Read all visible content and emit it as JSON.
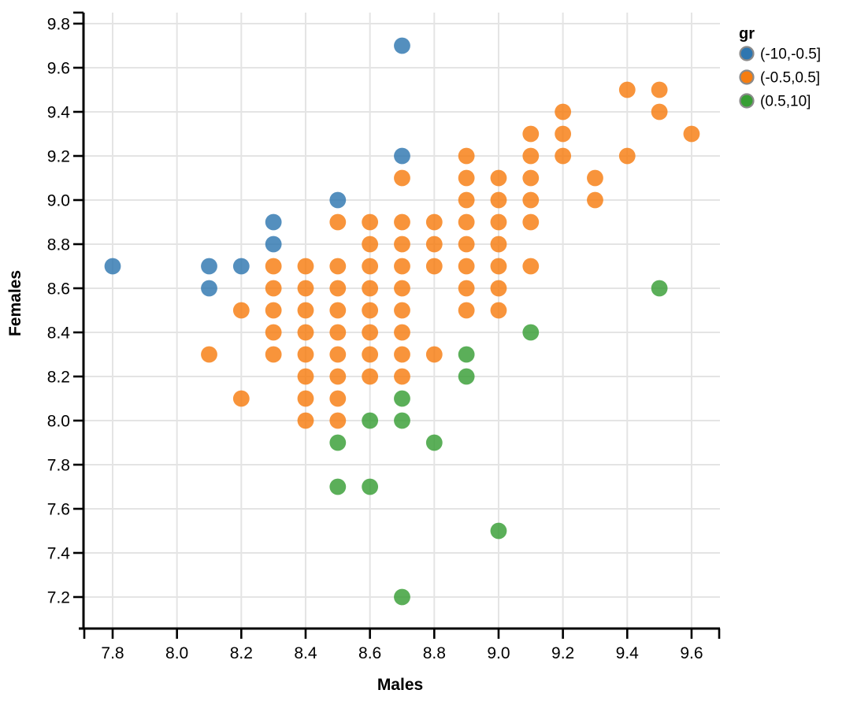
{
  "chart_data": {
    "type": "scatter",
    "title": "",
    "xlabel": "Males",
    "ylabel": "Females",
    "xlim": [
      7.71,
      9.68
    ],
    "ylim": [
      7.06,
      9.85
    ],
    "x_ticks": [
      7.8,
      8.0,
      8.2,
      8.4,
      8.6,
      8.8,
      9.0,
      9.2,
      9.4,
      9.6
    ],
    "y_ticks": [
      7.2,
      7.4,
      7.6,
      7.8,
      8.0,
      8.2,
      8.4,
      8.6,
      8.8,
      9.0,
      9.2,
      9.4,
      9.6,
      9.8
    ],
    "grid": true,
    "gridline_color": "#e4e4e4",
    "axis_color": "#000000",
    "legend_position": "right",
    "legend_title": "gr",
    "marker_opacity": 0.82,
    "series": [
      {
        "name": "(-10,-0.5]",
        "color": "#2e76b0",
        "points": [
          [
            7.8,
            8.7
          ],
          [
            8.1,
            8.7
          ],
          [
            8.1,
            8.6
          ],
          [
            8.2,
            8.7
          ],
          [
            8.3,
            8.9
          ],
          [
            8.3,
            8.8
          ],
          [
            8.5,
            9.0
          ],
          [
            8.7,
            9.7
          ],
          [
            8.7,
            9.2
          ]
        ]
      },
      {
        "name": "(-0.5,0.5]",
        "color": "#f67d10",
        "points": [
          [
            9.4,
            9.5
          ],
          [
            9.5,
            9.5
          ],
          [
            9.2,
            9.4
          ],
          [
            9.5,
            9.4
          ],
          [
            9.1,
            9.3
          ],
          [
            9.2,
            9.3
          ],
          [
            9.6,
            9.3
          ],
          [
            8.9,
            9.2
          ],
          [
            9.1,
            9.2
          ],
          [
            9.2,
            9.2
          ],
          [
            9.4,
            9.2
          ],
          [
            8.7,
            9.1
          ],
          [
            8.9,
            9.1
          ],
          [
            9.0,
            9.1
          ],
          [
            9.1,
            9.1
          ],
          [
            9.3,
            9.1
          ],
          [
            8.9,
            9.0
          ],
          [
            9.0,
            9.0
          ],
          [
            9.1,
            9.0
          ],
          [
            9.3,
            9.0
          ],
          [
            8.5,
            8.9
          ],
          [
            8.6,
            8.9
          ],
          [
            8.7,
            8.9
          ],
          [
            8.8,
            8.9
          ],
          [
            8.9,
            8.9
          ],
          [
            9.0,
            8.9
          ],
          [
            9.1,
            8.9
          ],
          [
            8.6,
            8.8
          ],
          [
            8.7,
            8.8
          ],
          [
            8.8,
            8.8
          ],
          [
            8.9,
            8.8
          ],
          [
            9.0,
            8.8
          ],
          [
            8.3,
            8.7
          ],
          [
            8.4,
            8.7
          ],
          [
            8.5,
            8.7
          ],
          [
            8.6,
            8.7
          ],
          [
            8.7,
            8.7
          ],
          [
            8.8,
            8.7
          ],
          [
            8.9,
            8.7
          ],
          [
            9.0,
            8.7
          ],
          [
            9.1,
            8.7
          ],
          [
            8.3,
            8.6
          ],
          [
            8.4,
            8.6
          ],
          [
            8.5,
            8.6
          ],
          [
            8.6,
            8.6
          ],
          [
            8.7,
            8.6
          ],
          [
            8.9,
            8.6
          ],
          [
            9.0,
            8.6
          ],
          [
            8.2,
            8.5
          ],
          [
            8.3,
            8.5
          ],
          [
            8.4,
            8.5
          ],
          [
            8.5,
            8.5
          ],
          [
            8.6,
            8.5
          ],
          [
            8.7,
            8.5
          ],
          [
            8.9,
            8.5
          ],
          [
            9.0,
            8.5
          ],
          [
            8.3,
            8.4
          ],
          [
            8.4,
            8.4
          ],
          [
            8.5,
            8.4
          ],
          [
            8.6,
            8.4
          ],
          [
            8.7,
            8.4
          ],
          [
            8.1,
            8.3
          ],
          [
            8.3,
            8.3
          ],
          [
            8.4,
            8.3
          ],
          [
            8.5,
            8.3
          ],
          [
            8.6,
            8.3
          ],
          [
            8.7,
            8.3
          ],
          [
            8.8,
            8.3
          ],
          [
            8.4,
            8.2
          ],
          [
            8.5,
            8.2
          ],
          [
            8.6,
            8.2
          ],
          [
            8.7,
            8.2
          ],
          [
            8.2,
            8.1
          ],
          [
            8.4,
            8.1
          ],
          [
            8.5,
            8.1
          ],
          [
            8.4,
            8.0
          ],
          [
            8.5,
            8.0
          ]
        ]
      },
      {
        "name": "(0.5,10]",
        "color": "#379e34",
        "points": [
          [
            9.5,
            8.6
          ],
          [
            9.1,
            8.4
          ],
          [
            8.9,
            8.3
          ],
          [
            8.9,
            8.2
          ],
          [
            8.7,
            8.1
          ],
          [
            8.6,
            8.0
          ],
          [
            8.7,
            8.0
          ],
          [
            8.5,
            7.9
          ],
          [
            8.8,
            7.9
          ],
          [
            8.5,
            7.7
          ],
          [
            8.6,
            7.7
          ],
          [
            9.0,
            7.5
          ],
          [
            8.7,
            7.2
          ]
        ]
      }
    ]
  }
}
